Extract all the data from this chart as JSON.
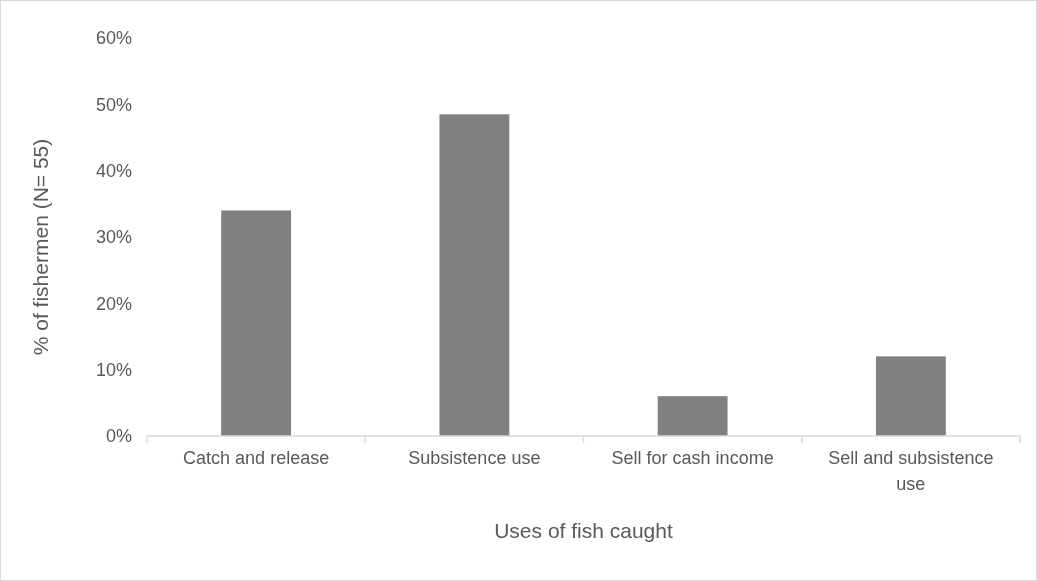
{
  "chart_data": {
    "type": "bar",
    "xlabel": "Uses of fish caught",
    "ylabel": "% of fishermen (N= 55)",
    "categories": [
      "Catch and release",
      "Subsistence use",
      "Sell for cash income",
      "Sell and subsistence use"
    ],
    "values": [
      34,
      48.5,
      6,
      12
    ],
    "color": "#808080",
    "ylim": [
      0,
      60
    ],
    "yticks": [
      {
        "value": 0,
        "label": "0%"
      },
      {
        "value": 10,
        "label": "10%"
      },
      {
        "value": 20,
        "label": "20%"
      },
      {
        "value": 30,
        "label": "30%"
      },
      {
        "value": 40,
        "label": "40%"
      },
      {
        "value": 50,
        "label": "50%"
      },
      {
        "value": 60,
        "label": "60%"
      }
    ],
    "grid": false
  }
}
